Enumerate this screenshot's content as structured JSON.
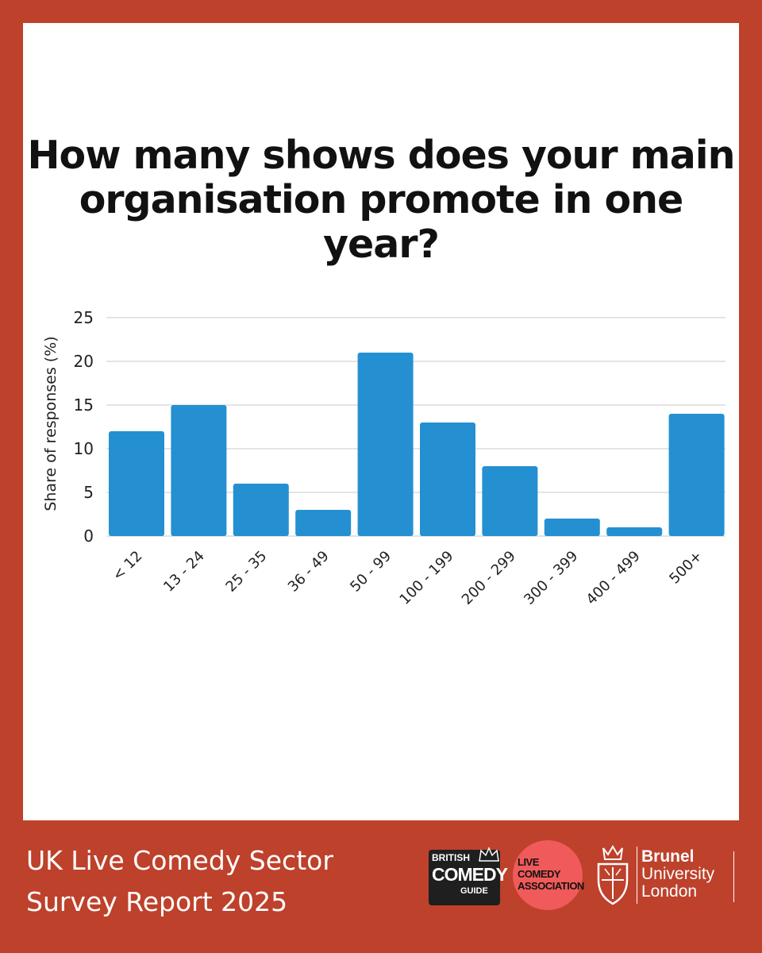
{
  "chart_data": {
    "type": "bar",
    "title": "How many shows does your main organisation promote in one year?",
    "ylabel": "Share of responses (%)",
    "xlabel": "",
    "categories": [
      "< 12",
      "13 - 24",
      "25 - 35",
      "36 - 49",
      "50 - 99",
      "100 - 199",
      "200 - 299",
      "300 - 399",
      "400 - 499",
      "500+"
    ],
    "values": [
      12,
      15,
      6,
      3,
      21,
      13,
      8,
      2,
      1,
      14
    ],
    "ylim": [
      0,
      25
    ],
    "yticks": [
      0,
      5,
      10,
      15,
      20,
      25
    ],
    "grid": true,
    "bar_color": "#2490d2"
  },
  "footer": {
    "title_line1": "UK Live Comedy Sector",
    "title_line2": "Survey Report 2025"
  },
  "logos": {
    "bcg": {
      "line1": "BRITISH",
      "line2": "COMEDY",
      "line3": "GUIDE"
    },
    "lca": {
      "line1": "LIVE",
      "line2": "COMEDY",
      "line3": "ASSOCIATION"
    },
    "brunel": {
      "line1": "Brunel",
      "line2": "University",
      "line3": "London"
    }
  },
  "colors": {
    "background": "#be412b",
    "panel": "#ffffff",
    "bar": "#2490d2",
    "lca_circle": "#f05a5a"
  }
}
